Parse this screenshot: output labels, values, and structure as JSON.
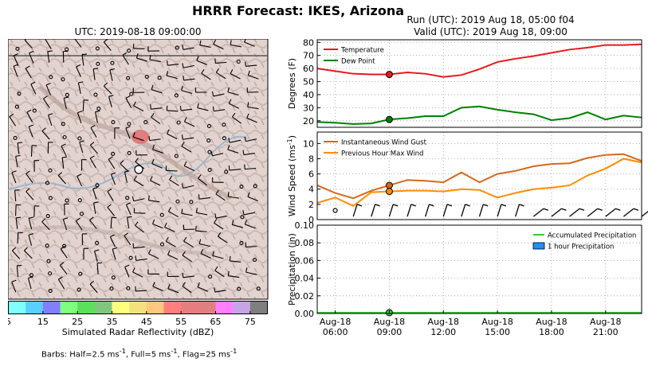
{
  "title": "HRRR Forecast: IKES, Arizona",
  "map": {
    "title": "UTC: 2019-08-18 09:00:00",
    "colorbar": {
      "label": "Simulated Radar Reflectivity (dBZ)",
      "ticks": [
        "5",
        "15",
        "25",
        "35",
        "45",
        "55",
        "65",
        "75"
      ],
      "colors": [
        "#7fffff",
        "#5ad0ff",
        "#7f7fff",
        "#7fff7f",
        "#5ae05a",
        "#7fc77f",
        "#ffff7f",
        "#f5e07f",
        "#ffc77f",
        "#ff7f7f",
        "#e57f7f",
        "#e07f7f",
        "#ff7fff",
        "#c7a5e5",
        "#7f7f7f"
      ]
    },
    "barbs_note": {
      "prefix": "Barbs: Half=2.5 ms",
      "sup1": "-1",
      "mid1": ", Full=5 ms",
      "sup2": "-1",
      "mid2": ", Flag=25 ms",
      "sup3": "-1"
    }
  },
  "run": {
    "line1": "Run (UTC): 2019 Aug 18, 05:00 f04",
    "line2": "Valid (UTC): 2019 Aug 18, 09:00"
  },
  "colors": {
    "temperature": "#e41a1c",
    "dew_point": "#008000",
    "gust": "#d2691e",
    "max_wind": "#ff8c00",
    "accum_precip": "#32cd32",
    "hour_precip": "#1e90ff"
  },
  "chart_data": [
    {
      "type": "line",
      "ylabel": "Degrees (F)",
      "ylim": [
        15,
        82
      ],
      "yticks": [
        "20",
        "30",
        "40",
        "50",
        "60",
        "70",
        "80"
      ],
      "grid": true,
      "legend_position": "top-left",
      "x_hours": [
        5,
        6,
        7,
        8,
        9,
        10,
        11,
        12,
        13,
        14,
        15,
        16,
        17,
        18,
        19,
        20,
        21,
        22,
        23
      ],
      "series": [
        {
          "name": "Temperature",
          "values": [
            60,
            58,
            56,
            55.5,
            55.5,
            57,
            56,
            53.5,
            55,
            59.5,
            65,
            67.5,
            69.5,
            72,
            74.5,
            76,
            78,
            78,
            78.5
          ]
        },
        {
          "name": "Dew Point",
          "values": [
            19,
            18.5,
            17.5,
            18,
            21,
            22,
            23.5,
            23.5,
            30,
            31,
            28.5,
            26.5,
            25,
            20.5,
            22,
            26.5,
            21,
            24,
            22.5
          ]
        }
      ],
      "highlight_hour": 9
    },
    {
      "type": "line",
      "ylabel": "Wind Speed (ms",
      "ylabel_sup": "-1",
      "ylabel_end": ")",
      "ylim": [
        0,
        11.5
      ],
      "yticks": [
        "0",
        "2",
        "4",
        "6",
        "8",
        "10"
      ],
      "grid": true,
      "legend_position": "top-left",
      "x_hours": [
        5,
        6,
        7,
        8,
        9,
        10,
        11,
        12,
        13,
        14,
        15,
        16,
        17,
        18,
        19,
        20,
        21,
        22,
        23
      ],
      "series": [
        {
          "name": "Instantaneous Wind Gust",
          "values": [
            4.5,
            3.5,
            2.8,
            3.8,
            4.5,
            5.2,
            5.1,
            4.9,
            6.2,
            4.9,
            6.0,
            6.4,
            7.0,
            7.3,
            7.4,
            8.1,
            8.5,
            8.6,
            7.7
          ]
        },
        {
          "name": "Previous Hour Max Wind",
          "values": [
            2.2,
            2.9,
            1.8,
            3.6,
            3.7,
            3.8,
            3.8,
            3.7,
            4.0,
            3.9,
            2.9,
            3.5,
            4.0,
            4.2,
            4.5,
            5.8,
            6.7,
            8.0,
            7.5
          ]
        }
      ],
      "highlight_hour": 9
    },
    {
      "type": "area",
      "ylabel": "Precipitation (in)",
      "ylim": [
        0,
        0.1
      ],
      "yticks": [
        "0.00",
        "0.02",
        "0.04",
        "0.06",
        "0.08",
        "0.10"
      ],
      "grid": true,
      "legend_position": "top-right",
      "x_hours": [
        5,
        6,
        7,
        8,
        9,
        10,
        11,
        12,
        13,
        14,
        15,
        16,
        17,
        18,
        19,
        20,
        21,
        22,
        23
      ],
      "series": [
        {
          "name": "Accumulated Precipitation",
          "values": [
            0,
            0,
            0,
            0,
            0,
            0,
            0,
            0,
            0,
            0,
            0,
            0,
            0,
            0,
            0,
            0,
            0,
            0,
            0
          ]
        },
        {
          "name": "1 hour Precipitation",
          "values": [
            0,
            0,
            0,
            0,
            0,
            0,
            0,
            0,
            0,
            0,
            0,
            0,
            0,
            0,
            0,
            0,
            0,
            0,
            0
          ]
        }
      ],
      "xticks": [
        {
          "hour": 6,
          "line1": "Aug-18",
          "line2": "06:00"
        },
        {
          "hour": 9,
          "line1": "Aug-18",
          "line2": "09:00"
        },
        {
          "hour": 12,
          "line1": "Aug-18",
          "line2": "12:00"
        },
        {
          "hour": 15,
          "line1": "Aug-18",
          "line2": "15:00"
        },
        {
          "hour": 18,
          "line1": "Aug-18",
          "line2": "18:00"
        },
        {
          "hour": 21,
          "line1": "Aug-18",
          "line2": "21:00"
        }
      ],
      "highlight_hour": 9
    }
  ]
}
